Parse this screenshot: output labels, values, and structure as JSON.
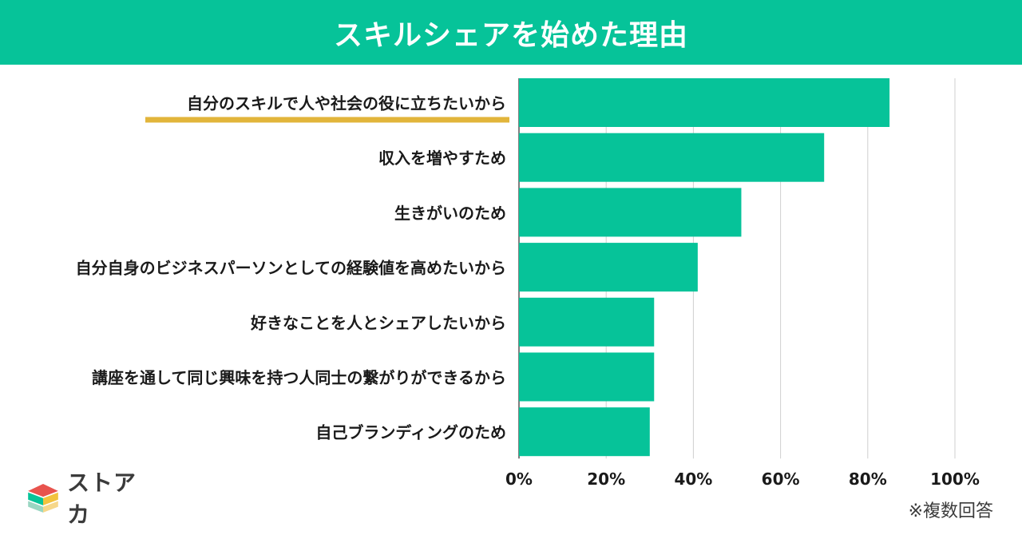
{
  "header": {
    "title": "スキルシェアを始めた理由"
  },
  "chart_data": {
    "type": "bar",
    "orientation": "horizontal",
    "categories": [
      "自分のスキルで人や社会の役に立ちたいから",
      "収入を増やすため",
      "生きがいのため",
      "自分自身のビジネスパーソンとしての経験値を高めたいから",
      "好きなことを人とシェアしたいから",
      "講座を通して同じ興味を持つ人同士の繋がりができるから",
      "自己ブランディングのため"
    ],
    "values": [
      85,
      70,
      51,
      41,
      31,
      31,
      30
    ],
    "highlight_index": 0,
    "xlim": [
      0,
      100
    ],
    "xticks": [
      "0%",
      "20%",
      "40%",
      "60%",
      "80%",
      "100%"
    ],
    "grid": true,
    "bar_color": "#06c399",
    "highlight_color": "#e2b53b"
  },
  "logo": {
    "text": "ストアカ"
  },
  "footnote": "※複数回答"
}
